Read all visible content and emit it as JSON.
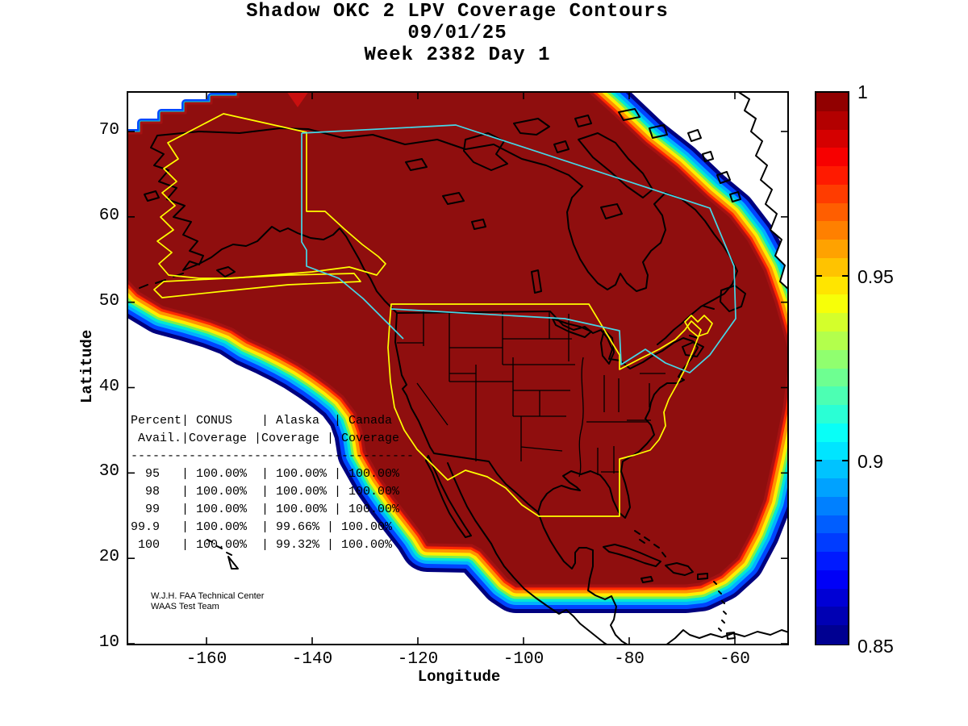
{
  "header": {
    "title": "Shadow OKC 2 LPV Coverage Contours",
    "date": "09/01/25",
    "week_label": "Week 2382 Day 1"
  },
  "chart_data": {
    "type": "heatmap",
    "subtype": "filled-contour geographic coverage map, jet colormap, MATLAB-style",
    "title": "Shadow OKC 2 LPV Coverage Contours",
    "subtitle_lines": [
      "09/01/25",
      "Week 2382 Day 1"
    ],
    "xlabel": "Longitude",
    "ylabel": "Latitude",
    "xlim": [
      -175,
      -50
    ],
    "ylim": [
      10,
      75
    ],
    "xticks": [
      -160,
      -140,
      -120,
      -100,
      -80,
      -60
    ],
    "yticks": [
      70,
      60,
      50,
      40,
      30,
      20,
      10
    ],
    "grid": false,
    "colorbar": {
      "min": 0.85,
      "max": 1,
      "tick_labels": [
        "1",
        "0.95",
        "0.9",
        "0.85"
      ],
      "tick_values": [
        1,
        0.95,
        0.9,
        0.85
      ],
      "inner_tick_values": [
        0.95,
        0.9
      ],
      "colormap": "jet",
      "n_bands": 30,
      "position": "right"
    },
    "values_legend": "LPV availability fraction: 1 = dark red (full coverage), 0.85 = dark blue",
    "coverage_description": "Dark red (availability ~1.0) covers Alaska, Canada, CONUS, Mexico and adjacent oceans; rainbow contour fringe (red-orange-yellow-green-cyan-blue) along the Pacific southwest edge, along a flat southern cutoff near 17N, and on the northeast Atlantic edge near Greenland; white = outside coverage",
    "region_outlines": [
      {
        "name": "Alaska service volume",
        "color": "#ffff00"
      },
      {
        "name": "CONUS service volume",
        "color": "#ffff00"
      },
      {
        "name": "Canada service volume",
        "color": "#45d8e8"
      }
    ],
    "availability_table": {
      "header_lines": [
        "Percent| CONUS    | Alaska  | Canada",
        " Avail.|Coverage |Coverage | Coverage"
      ],
      "divider": "---------------------------------------",
      "row_lines": [
        "  95   | 100.00%  | 100.00% | 100.00%",
        "  98   | 100.00%  | 100.00% | 100.00%",
        "  99   | 100.00%  | 100.00% | 100.00%",
        "99.9   | 100.00%  | 99.66% | 100.00%",
        " 100   | 100.00%  | 99.32% | 100.00%"
      ],
      "columns": [
        "Percent Avail.",
        "CONUS Coverage",
        "Alaska Coverage",
        "Canada Coverage"
      ],
      "rows": [
        [
          "95",
          "100.00%",
          "100.00%",
          "100.00%"
        ],
        [
          "98",
          "100.00%",
          "100.00%",
          "100.00%"
        ],
        [
          "99",
          "100.00%",
          "100.00%",
          "100.00%"
        ],
        [
          "99.9",
          "100.00%",
          "99.66%",
          "100.00%"
        ],
        [
          "100",
          "100.00%",
          "99.32%",
          "100.00%"
        ]
      ]
    },
    "credit": [
      "W.J.H. FAA Technical Center",
      "WAAS Test Team"
    ]
  },
  "colors": {
    "coverage_fill": "#8f0e0e",
    "fringe_outward": [
      "#c01010",
      "#ff2c00",
      "#ff9400",
      "#ffee00",
      "#7cf24c",
      "#00e8d4",
      "#00b0ff",
      "#0044ff",
      "#00007f"
    ],
    "coastline": "#000000",
    "no_coverage": "#ffffff",
    "alaska_conus_outline": "#ffff00",
    "canada_outline": "#45d8e8"
  }
}
